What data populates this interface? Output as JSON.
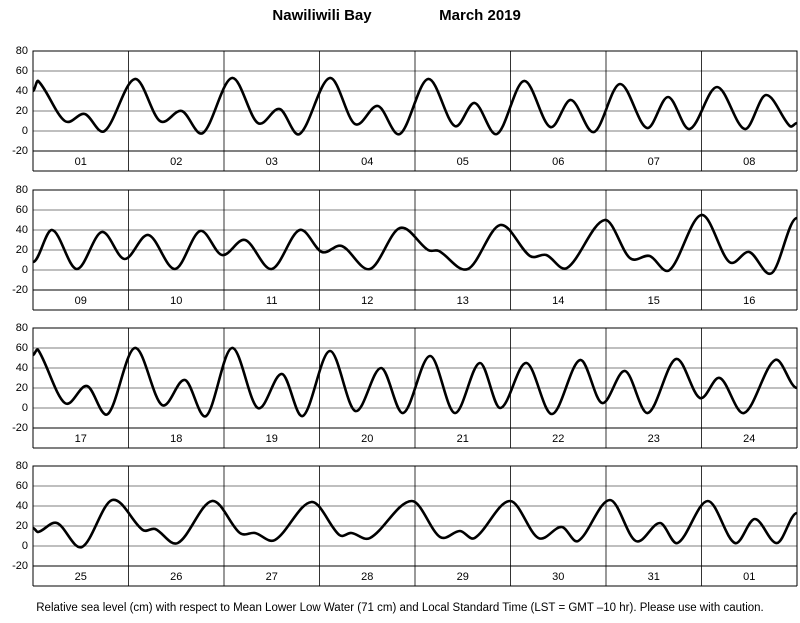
{
  "title": "Nawiliwili Bay",
  "subtitle": "March   2019",
  "footer": "Relative sea level (cm) with respect to Mean Lower Low Water (71 cm) and Local Standard Time (LST = GMT –10 hr). Please use with caution.",
  "chart_data": [
    {
      "type": "line",
      "categories": [
        "01",
        "02",
        "03",
        "04",
        "05",
        "06",
        "07",
        "08"
      ],
      "xlim": [
        0,
        192
      ],
      "ylim": [
        -20,
        80
      ],
      "yticks": [
        -20,
        0,
        20,
        40,
        60,
        80
      ],
      "grid": true,
      "series": [
        {
          "color": "#000000",
          "x": [
            0,
            1.3,
            8,
            13,
            18,
            25.6,
            31.9,
            37.4,
            42.7,
            50,
            56.5,
            62,
            67,
            74.6,
            80.9,
            86.7,
            92.2,
            99.3,
            106,
            111,
            116.6,
            123.4,
            130,
            135.2,
            141,
            147.5,
            154.3,
            159.6,
            165,
            171.9,
            178.9,
            184.2,
            190.2,
            192
          ],
          "values": [
            40,
            50,
            10,
            17,
            0,
            52,
            10,
            20,
            -2,
            53,
            8,
            22,
            -3,
            53,
            7,
            25,
            -3,
            52,
            5,
            28,
            -3,
            50,
            4,
            31,
            -1,
            47,
            3,
            34,
            2,
            44,
            2,
            36,
            5,
            8
          ]
        }
      ]
    },
    {
      "type": "line",
      "categories": [
        "09",
        "10",
        "11",
        "12",
        "13",
        "14",
        "15",
        "16"
      ],
      "xlim": [
        0,
        192
      ],
      "ylim": [
        -20,
        80
      ],
      "yticks": [
        -20,
        0,
        20,
        40,
        60,
        80
      ],
      "grid": true,
      "series": [
        {
          "color": "#000000",
          "x": [
            0,
            4.8,
            11,
            17.3,
            23,
            29,
            35.7,
            42,
            47.5,
            53.3,
            60,
            67,
            72.6,
            77.6,
            84.7,
            92.2,
            99.3,
            102,
            109.3,
            117.4,
            124.9,
            129,
            134.2,
            143.7,
            150,
            155,
            160,
            168,
            175,
            180,
            185.7,
            192
          ],
          "values": [
            8,
            40,
            1,
            38,
            11,
            35,
            1,
            39,
            15,
            30,
            1,
            40,
            18,
            24,
            1,
            42,
            20,
            19,
            1,
            45,
            14,
            15,
            2,
            50,
            12,
            14,
            0,
            55,
            8,
            18,
            -3,
            52
          ]
        }
      ]
    },
    {
      "type": "line",
      "categories": [
        "17",
        "18",
        "19",
        "20",
        "21",
        "22",
        "23",
        "24"
      ],
      "xlim": [
        0,
        192
      ],
      "ylim": [
        -20,
        80
      ],
      "yticks": [
        -20,
        0,
        20,
        40,
        60,
        80
      ],
      "grid": true,
      "series": [
        {
          "color": "#000000",
          "x": [
            0,
            1.3,
            8,
            13.6,
            18.8,
            25.6,
            32.4,
            38.2,
            43.5,
            50,
            56.5,
            62.6,
            67.8,
            74.6,
            81,
            87.5,
            93,
            99.8,
            106,
            112.3,
            117.4,
            124,
            130.4,
            137.5,
            143,
            148.8,
            154.5,
            161.6,
            167.6,
            172.6,
            178.7,
            186.5,
            192
          ],
          "values": [
            53,
            58,
            5,
            22,
            -6,
            60,
            3,
            28,
            -8,
            60,
            0,
            34,
            -8,
            57,
            -3,
            40,
            -5,
            52,
            -5,
            45,
            0,
            45,
            -6,
            48,
            5,
            37,
            -5,
            49,
            10,
            30,
            -5,
            48,
            20
          ]
        }
      ]
    },
    {
      "type": "line",
      "categories": [
        "25",
        "26",
        "27",
        "28",
        "29",
        "30",
        "31",
        "01"
      ],
      "xlim": [
        0,
        192
      ],
      "ylim": [
        -20,
        80
      ],
      "yticks": [
        -20,
        0,
        20,
        40,
        60,
        80
      ],
      "grid": true,
      "series": [
        {
          "color": "#000000",
          "x": [
            0,
            1.3,
            6,
            12.3,
            19.9,
            27.6,
            30.7,
            36.4,
            45,
            52,
            55.8,
            60.8,
            70,
            77,
            80,
            84.7,
            95.2,
            102.3,
            107.3,
            111,
            119.9,
            127,
            132.9,
            137,
            145,
            151.5,
            157.6,
            162,
            169.6,
            176.4,
            181.4,
            187,
            192
          ],
          "values": [
            18,
            14,
            23,
            -1,
            46,
            16,
            17,
            3,
            45,
            13,
            13,
            6,
            44,
            11,
            13,
            8,
            45,
            9,
            15,
            8,
            45,
            8,
            19,
            5,
            46,
            5,
            23,
            3,
            45,
            3,
            27,
            3,
            33
          ]
        }
      ]
    }
  ]
}
